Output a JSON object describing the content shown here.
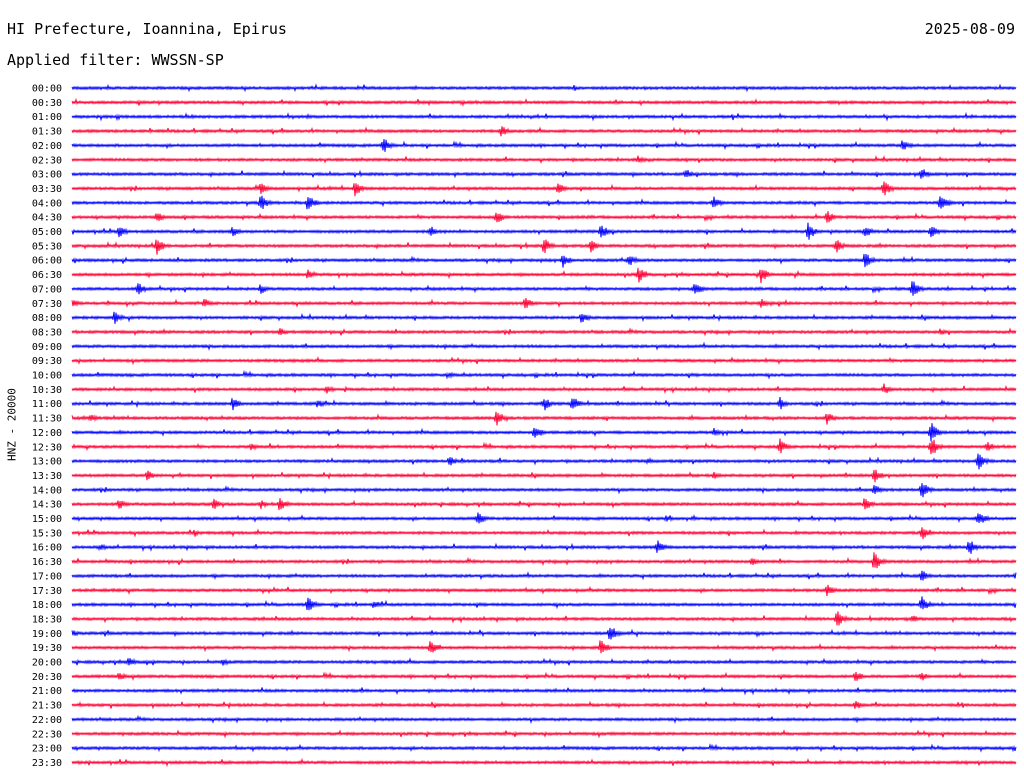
{
  "header": {
    "station": "HI Prefecture, Ioannina, Epirus",
    "date": "2025-08-09",
    "filter": "Applied filter: WWSSN-SP",
    "channel_label": "HNZ - 20000"
  },
  "colors": {
    "even_row": "#0000ff",
    "odd_row": "#ff0033"
  },
  "chart_data": {
    "type": "line",
    "title": "HI Prefecture, Ioannina, Epirus",
    "ylabel": "HNZ - 20000",
    "rows": [
      "00:00",
      "00:30",
      "01:00",
      "01:30",
      "02:00",
      "02:30",
      "03:00",
      "03:30",
      "04:00",
      "04:30",
      "05:00",
      "05:30",
      "06:00",
      "06:30",
      "07:00",
      "07:30",
      "08:00",
      "08:30",
      "09:00",
      "09:30",
      "10:00",
      "10:30",
      "11:00",
      "11:30",
      "12:00",
      "12:30",
      "13:00",
      "13:30",
      "14:00",
      "14:30",
      "15:00",
      "15:30",
      "16:00",
      "16:30",
      "17:00",
      "17:30",
      "18:00",
      "18:30",
      "19:00",
      "19:30",
      "20:00",
      "20:30",
      "21:00",
      "21:30",
      "22:00",
      "22:30",
      "23:00",
      "23:30"
    ],
    "events": [
      [
        3,
        0.455,
        7
      ],
      [
        4,
        0.33,
        9
      ],
      [
        4,
        0.88,
        7
      ],
      [
        5,
        0.6,
        5
      ],
      [
        6,
        0.65,
        6
      ],
      [
        6,
        0.9,
        7
      ],
      [
        7,
        0.2,
        6
      ],
      [
        7,
        0.3,
        9
      ],
      [
        7,
        0.515,
        8
      ],
      [
        7,
        0.86,
        10
      ],
      [
        8,
        0.2,
        9
      ],
      [
        8,
        0.25,
        10
      ],
      [
        8,
        0.68,
        8
      ],
      [
        8,
        0.92,
        12
      ],
      [
        9,
        0.09,
        6
      ],
      [
        9,
        0.45,
        8
      ],
      [
        9,
        0.8,
        7
      ],
      [
        10,
        0.05,
        7
      ],
      [
        10,
        0.17,
        6
      ],
      [
        10,
        0.38,
        6
      ],
      [
        10,
        0.56,
        9
      ],
      [
        10,
        0.78,
        10
      ],
      [
        10,
        0.84,
        7
      ],
      [
        10,
        0.91,
        8
      ],
      [
        11,
        0.09,
        10
      ],
      [
        11,
        0.5,
        9
      ],
      [
        11,
        0.55,
        7
      ],
      [
        11,
        0.81,
        7
      ],
      [
        12,
        0.52,
        8
      ],
      [
        12,
        0.59,
        7
      ],
      [
        12,
        0.84,
        9
      ],
      [
        13,
        0.25,
        6
      ],
      [
        13,
        0.6,
        9
      ],
      [
        13,
        0.73,
        9
      ],
      [
        14,
        0.07,
        7
      ],
      [
        14,
        0.2,
        6
      ],
      [
        14,
        0.66,
        8
      ],
      [
        14,
        0.89,
        10
      ],
      [
        15,
        0.0,
        5
      ],
      [
        15,
        0.14,
        6
      ],
      [
        15,
        0.48,
        7
      ],
      [
        15,
        0.73,
        5
      ],
      [
        16,
        0.045,
        7
      ],
      [
        16,
        0.54,
        7
      ],
      [
        17,
        0.22,
        5
      ],
      [
        17,
        0.92,
        4
      ],
      [
        20,
        0.4,
        3
      ],
      [
        21,
        0.27,
        5
      ],
      [
        21,
        0.86,
        6
      ],
      [
        22,
        0.17,
        7
      ],
      [
        22,
        0.26,
        5
      ],
      [
        22,
        0.5,
        8
      ],
      [
        22,
        0.53,
        9
      ],
      [
        22,
        0.75,
        7
      ],
      [
        23,
        0.02,
        5
      ],
      [
        23,
        0.45,
        9
      ],
      [
        23,
        0.8,
        7
      ],
      [
        24,
        0.49,
        9
      ],
      [
        24,
        0.68,
        5
      ],
      [
        24,
        0.91,
        11
      ],
      [
        25,
        0.19,
        4
      ],
      [
        25,
        0.75,
        9
      ],
      [
        25,
        0.91,
        12
      ],
      [
        25,
        0.97,
        6
      ],
      [
        26,
        0.4,
        6
      ],
      [
        26,
        0.61,
        4
      ],
      [
        26,
        0.96,
        10
      ],
      [
        27,
        0.08,
        6
      ],
      [
        27,
        0.68,
        4
      ],
      [
        27,
        0.85,
        8
      ],
      [
        28,
        0.85,
        6
      ],
      [
        28,
        0.9,
        10
      ],
      [
        29,
        0.05,
        6
      ],
      [
        29,
        0.15,
        6
      ],
      [
        29,
        0.2,
        5
      ],
      [
        29,
        0.22,
        8
      ],
      [
        29,
        0.84,
        9
      ],
      [
        30,
        0.43,
        8
      ],
      [
        30,
        0.63,
        4
      ],
      [
        30,
        0.96,
        10
      ],
      [
        31,
        0.13,
        4
      ],
      [
        31,
        0.9,
        8
      ],
      [
        32,
        0.03,
        4
      ],
      [
        32,
        0.62,
        8
      ],
      [
        32,
        0.95,
        10
      ],
      [
        33,
        0.72,
        5
      ],
      [
        33,
        0.85,
        11
      ],
      [
        34,
        0.9,
        7
      ],
      [
        34,
        1.0,
        6
      ],
      [
        35,
        0.8,
        7
      ],
      [
        36,
        0.25,
        9
      ],
      [
        36,
        0.32,
        5
      ],
      [
        36,
        0.9,
        9
      ],
      [
        37,
        0.81,
        10
      ],
      [
        37,
        0.89,
        5
      ],
      [
        38,
        0.0,
        4
      ],
      [
        38,
        0.57,
        11
      ],
      [
        39,
        0.38,
        9
      ],
      [
        39,
        0.56,
        10
      ],
      [
        40,
        0.06,
        5
      ],
      [
        40,
        0.16,
        4
      ],
      [
        41,
        0.05,
        5
      ],
      [
        41,
        0.83,
        7
      ],
      [
        41,
        0.9,
        5
      ],
      [
        43,
        0.83,
        5
      ]
    ]
  }
}
